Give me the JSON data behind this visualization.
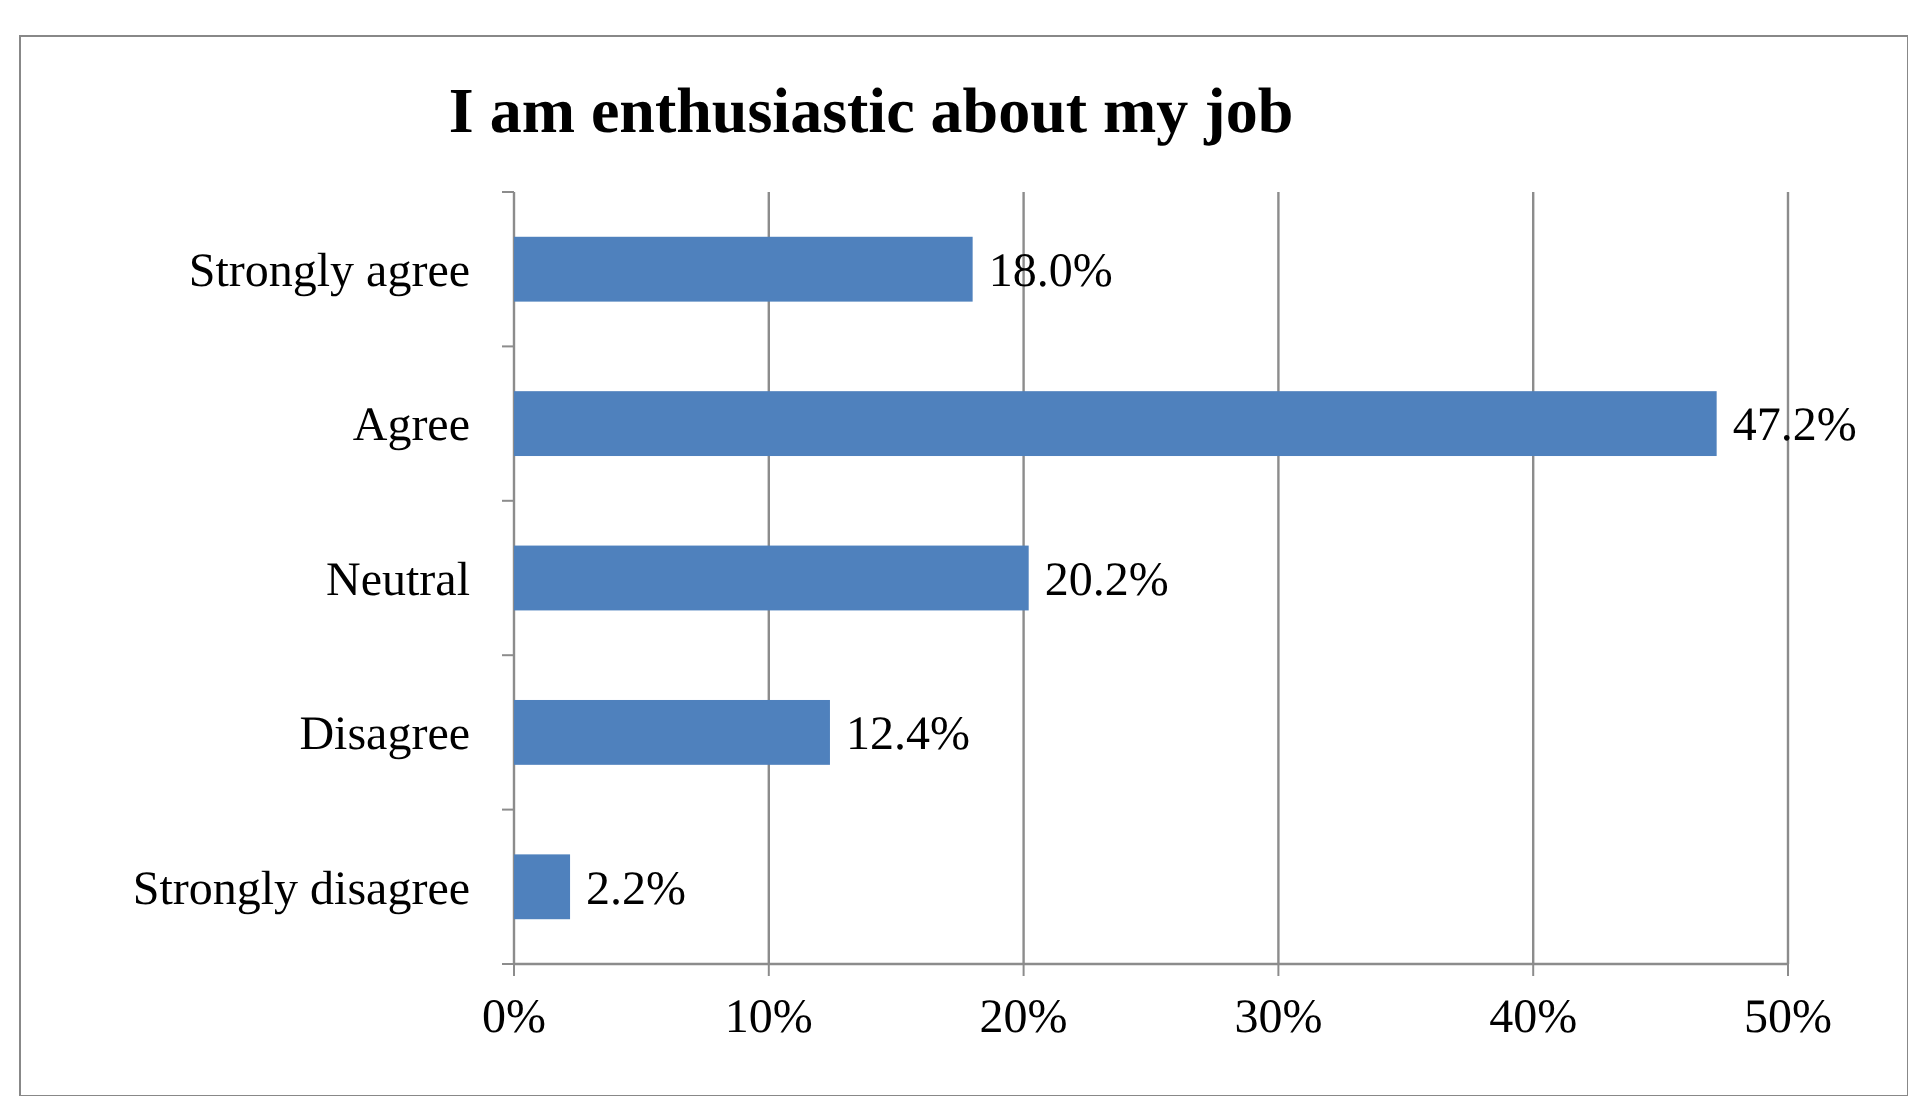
{
  "chart_data": {
    "type": "bar",
    "orientation": "horizontal",
    "title": "I am enthusiastic about my job",
    "categories": [
      "Strongly agree",
      "Agree",
      "Neutral",
      "Disagree",
      "Strongly disagree"
    ],
    "values": [
      18.0,
      47.2,
      20.2,
      12.4,
      2.2
    ],
    "value_labels": [
      "18.0%",
      "47.2%",
      "20.2%",
      "12.4%",
      "2.2%"
    ],
    "color": "#4f81bd",
    "xlim": [
      0,
      50
    ],
    "xticks": [
      {
        "value": 0,
        "label": "0%"
      },
      {
        "value": 10,
        "label": "10%"
      },
      {
        "value": 20,
        "label": "20%"
      },
      {
        "value": 30,
        "label": "30%"
      },
      {
        "value": 40,
        "label": "40%"
      },
      {
        "value": 50,
        "label": "50%"
      }
    ],
    "grid": "x"
  }
}
